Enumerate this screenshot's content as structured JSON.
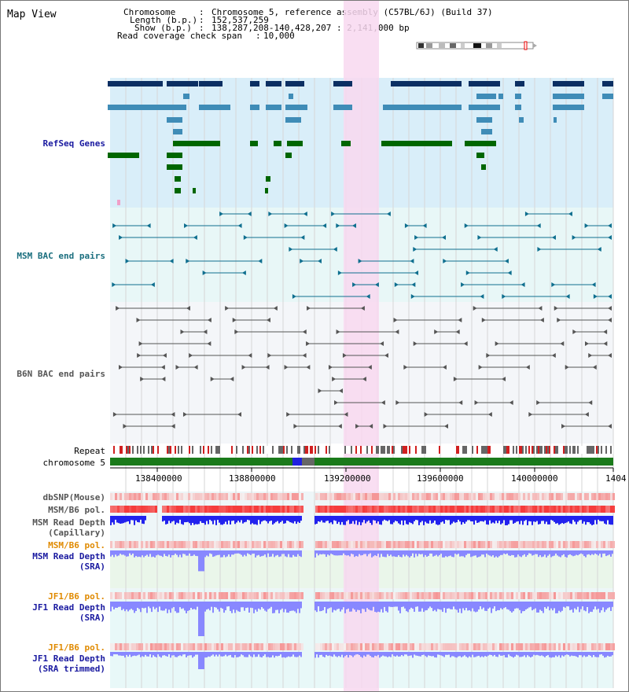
{
  "title": "Map View",
  "info": {
    "chromosome_key": "Chromosome",
    "chromosome_val": "Chromosome 5, reference assembly (C57BL/6J) (Build 37)",
    "length_key": "Length (b.p.)",
    "length_val": "152,537,259",
    "show_key": "Show (b.p.)",
    "show_val": "138,287,208-140,428,207 : 2,141,000 bp",
    "coverage_key": "Read coverage check span",
    "coverage_val": "10,000"
  },
  "tracks": {
    "refseq": "RefSeq Genes",
    "msm_bac": "MSM BAC end pairs",
    "b6n_bac": "B6N BAC end pairs",
    "repeat": "Repeat",
    "chromosome": "chromosome 5",
    "dbsnp": "dbSNP(Mouse)",
    "msm_pol": "MSM/B6 pol.",
    "msm_depth_cap_1": "MSM Read Depth",
    "msm_depth_cap_2": "(Capillary)",
    "msm_pol_2": "MSM/B6 pol.",
    "msm_depth_sra_1": "MSM Read Depth",
    "msm_depth_sra_2": "(SRA)",
    "jf1_pol": "JF1/B6 pol.",
    "jf1_depth_1": "JF1 Read Depth",
    "jf1_depth_2": "(SRA)",
    "jf1_pol_2": "JF1/B6 pol.",
    "jf1_trim_1": "JF1 Read Depth",
    "jf1_trim_2": "(SRA trimmed)"
  },
  "axis": {
    "ticks": [
      "138400000",
      "138800000",
      "139200000",
      "139600000",
      "140000000",
      "1404"
    ]
  },
  "colors": {
    "refseq_bg": "#d9eef9",
    "msm_bg": "#e8f7f7",
    "highlight": "#f8d8f0",
    "gene_dark": "#0b2f63",
    "gene_mid": "#3f8cb7",
    "gene_green": "#006600",
    "msm_line": "#0f6f8f",
    "b6n_line": "#555555",
    "pol_red": "#ee3333",
    "depth_blue": "#2222ee",
    "depth_light": "#8888ff",
    "label_blue": "#1a1aa0",
    "label_teal": "#1a6e7e",
    "label_gray": "#555555",
    "label_orange": "#e08a00"
  }
}
